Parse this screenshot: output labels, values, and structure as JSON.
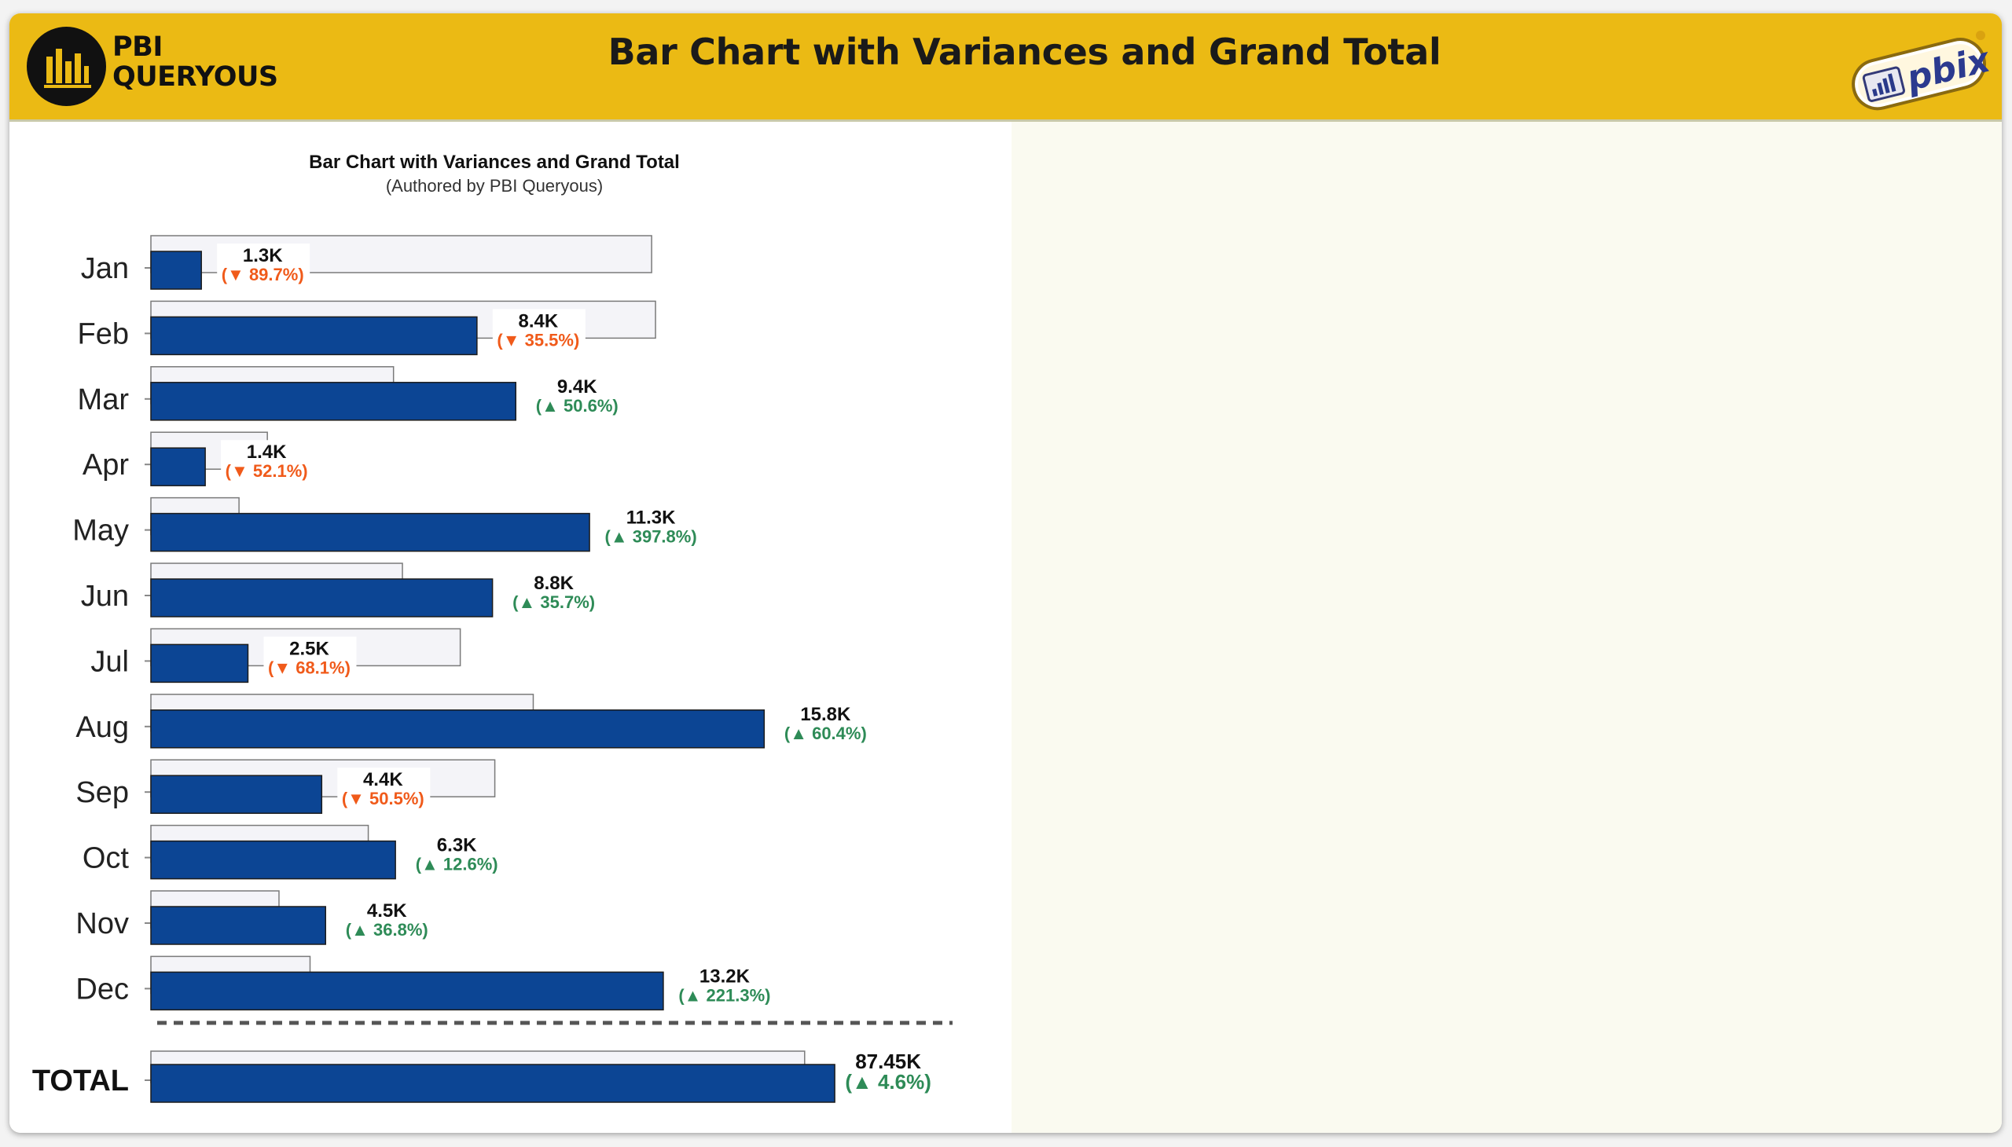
{
  "header": {
    "brand_line1": "PBI",
    "brand_line2": "QUERYOUS",
    "title": "Bar Chart with Variances and Grand Total",
    "badge_text": "pbix"
  },
  "colors": {
    "header_bg": "#ebba14",
    "bar": "#0c4594",
    "prior_bar": "#f4f4f8",
    "increase": "#2e8b57",
    "decrease": "#f05a1a"
  },
  "chart_data": {
    "type": "bar",
    "orientation": "horizontal",
    "title": "Bar Chart with Variances and Grand Total",
    "subtitle": "(Authored by PBI Queryous)",
    "categories": [
      "Jan",
      "Feb",
      "Mar",
      "Apr",
      "May",
      "Jun",
      "Jul",
      "Aug",
      "Sep",
      "Oct",
      "Nov",
      "Dec"
    ],
    "series": [
      {
        "values": [
          1.3,
          8.4,
          9.4,
          1.4,
          11.3,
          8.8,
          2.5,
          15.8,
          4.4,
          6.3,
          4.5,
          13.2
        ]
      },
      {
        "values": [
          12.9,
          13.0,
          6.25,
          3.0,
          2.27,
          6.48,
          7.97,
          9.85,
          8.86,
          5.6,
          3.3,
          4.1
        ]
      }
    ],
    "value_labels": [
      "1.3K",
      "8.4K",
      "9.4K",
      "1.4K",
      "11.3K",
      "8.8K",
      "2.5K",
      "15.8K",
      "4.4K",
      "6.3K",
      "4.5K",
      "13.2K"
    ],
    "variance_labels": [
      "(▼ 89.7%)",
      "(▼ 35.5%)",
      "(▲ 50.6%)",
      "(▼ 52.1%)",
      "(▲ 397.8%)",
      "(▲ 35.7%)",
      "(▼ 68.1%)",
      "(▲ 60.4%)",
      "(▼ 50.5%)",
      "(▲ 12.6%)",
      "(▲ 36.8%)",
      "(▲ 221.3%)"
    ],
    "variance_direction": [
      "down",
      "down",
      "up",
      "down",
      "up",
      "up",
      "down",
      "up",
      "down",
      "up",
      "up",
      "up"
    ],
    "xlim": [
      0,
      18
    ],
    "grid": false,
    "total": {
      "label": "TOTAL",
      "value": 87.45,
      "prior_value": 83.6,
      "value_label": "87.45K",
      "variance_label": "(▲ 4.6%)",
      "direction": "up",
      "xlim": [
        0,
        99.6
      ]
    }
  }
}
